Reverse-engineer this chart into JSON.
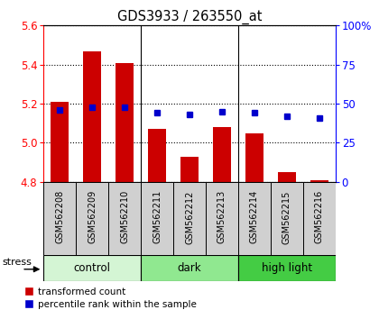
{
  "title": "GDS3933 / 263550_at",
  "samples": [
    "GSM562208",
    "GSM562209",
    "GSM562210",
    "GSM562211",
    "GSM562212",
    "GSM562213",
    "GSM562214",
    "GSM562215",
    "GSM562216"
  ],
  "red_values": [
    5.21,
    5.47,
    5.41,
    5.07,
    4.93,
    5.08,
    5.05,
    4.85,
    4.81
  ],
  "blue_values": [
    46,
    48,
    48,
    44,
    43,
    45,
    44,
    42,
    41
  ],
  "ylim_left": [
    4.8,
    5.6
  ],
  "ylim_right": [
    0,
    100
  ],
  "yticks_left": [
    4.8,
    5.0,
    5.2,
    5.4,
    5.6
  ],
  "yticks_right": [
    0,
    25,
    50,
    75,
    100
  ],
  "groups": [
    {
      "label": "control",
      "start": 0,
      "end": 3,
      "color": "#d4f5d4"
    },
    {
      "label": "dark",
      "start": 3,
      "end": 6,
      "color": "#90e890"
    },
    {
      "label": "high light",
      "start": 6,
      "end": 9,
      "color": "#44cc44"
    }
  ],
  "bar_color": "#cc0000",
  "dot_color": "#0000cc",
  "bar_bottom": 4.8,
  "sample_bg": "#d0d0d0",
  "stress_label": "stress",
  "legend_red": "transformed count",
  "legend_blue": "percentile rank within the sample"
}
